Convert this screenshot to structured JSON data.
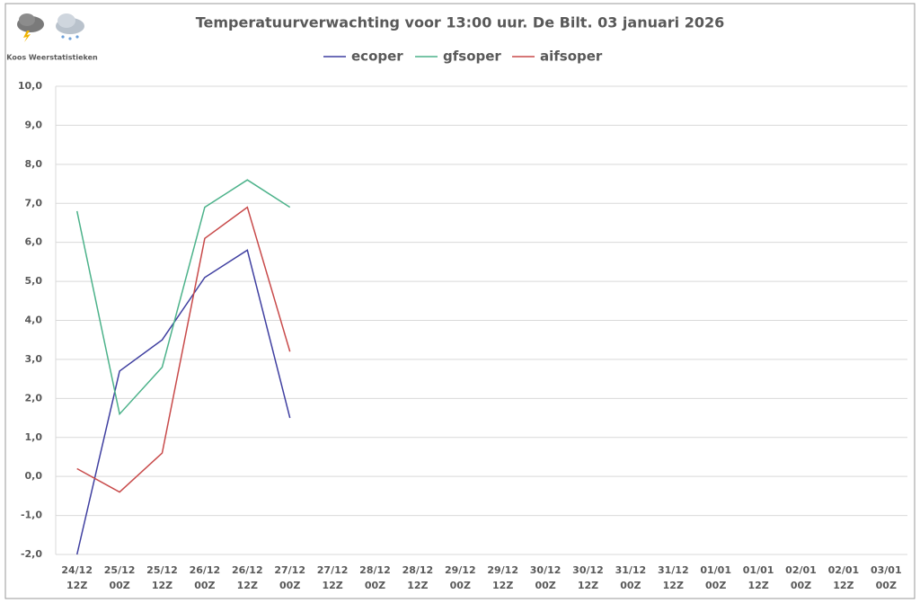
{
  "chart_data": {
    "type": "line",
    "title": "Temperatuurverwachting voor 13:00 uur. De Bilt. 03 januari 2026",
    "logo_text": "Koos Weerstatistieken",
    "categories": [
      "24/12\n12Z",
      "25/12\n00Z",
      "25/12\n12Z",
      "26/12\n00Z",
      "26/12\n12Z",
      "27/12\n00Z",
      "27/12\n12Z",
      "28/12\n00Z",
      "28/12\n12Z",
      "29/12\n00Z",
      "29/12\n12Z",
      "30/12\n00Z",
      "30/12\n12Z",
      "31/12\n00Z",
      "31/12\n12Z",
      "01/01\n00Z",
      "01/01\n12Z",
      "02/01\n00Z",
      "02/01\n12Z",
      "03/01\n00Z"
    ],
    "series": [
      {
        "name": "ecoper",
        "color": "#3f3fa0",
        "values": [
          -2.0,
          2.7,
          3.5,
          5.1,
          5.8,
          1.5,
          null,
          null,
          null,
          null,
          null,
          null,
          null,
          null,
          null,
          null,
          null,
          null,
          null,
          null
        ]
      },
      {
        "name": "gfsoper",
        "color": "#4cb28a",
        "values": [
          6.8,
          1.6,
          2.8,
          6.9,
          7.6,
          6.9,
          null,
          null,
          null,
          null,
          null,
          null,
          null,
          null,
          null,
          null,
          null,
          null,
          null,
          null
        ]
      },
      {
        "name": "aifsoper",
        "color": "#c84a4a",
        "values": [
          0.2,
          -0.4,
          0.6,
          6.1,
          6.9,
          3.2,
          null,
          null,
          null,
          null,
          null,
          null,
          null,
          null,
          null,
          null,
          null,
          null,
          null,
          null
        ]
      }
    ],
    "ylim": [
      -2,
      10
    ],
    "yticks": [
      {
        "value": -2,
        "label": "-2,0"
      },
      {
        "value": -1,
        "label": "-1,0"
      },
      {
        "value": 0,
        "label": "0,0"
      },
      {
        "value": 1,
        "label": "1,0"
      },
      {
        "value": 2,
        "label": "2,0"
      },
      {
        "value": 3,
        "label": "3,0"
      },
      {
        "value": 4,
        "label": "4,0"
      },
      {
        "value": 5,
        "label": "5,0"
      },
      {
        "value": 6,
        "label": "6,0"
      },
      {
        "value": 7,
        "label": "7,0"
      },
      {
        "value": 8,
        "label": "8,0"
      },
      {
        "value": 9,
        "label": "9,0"
      },
      {
        "value": 10,
        "label": "10,0"
      }
    ],
    "grid": true,
    "legend": "top"
  }
}
